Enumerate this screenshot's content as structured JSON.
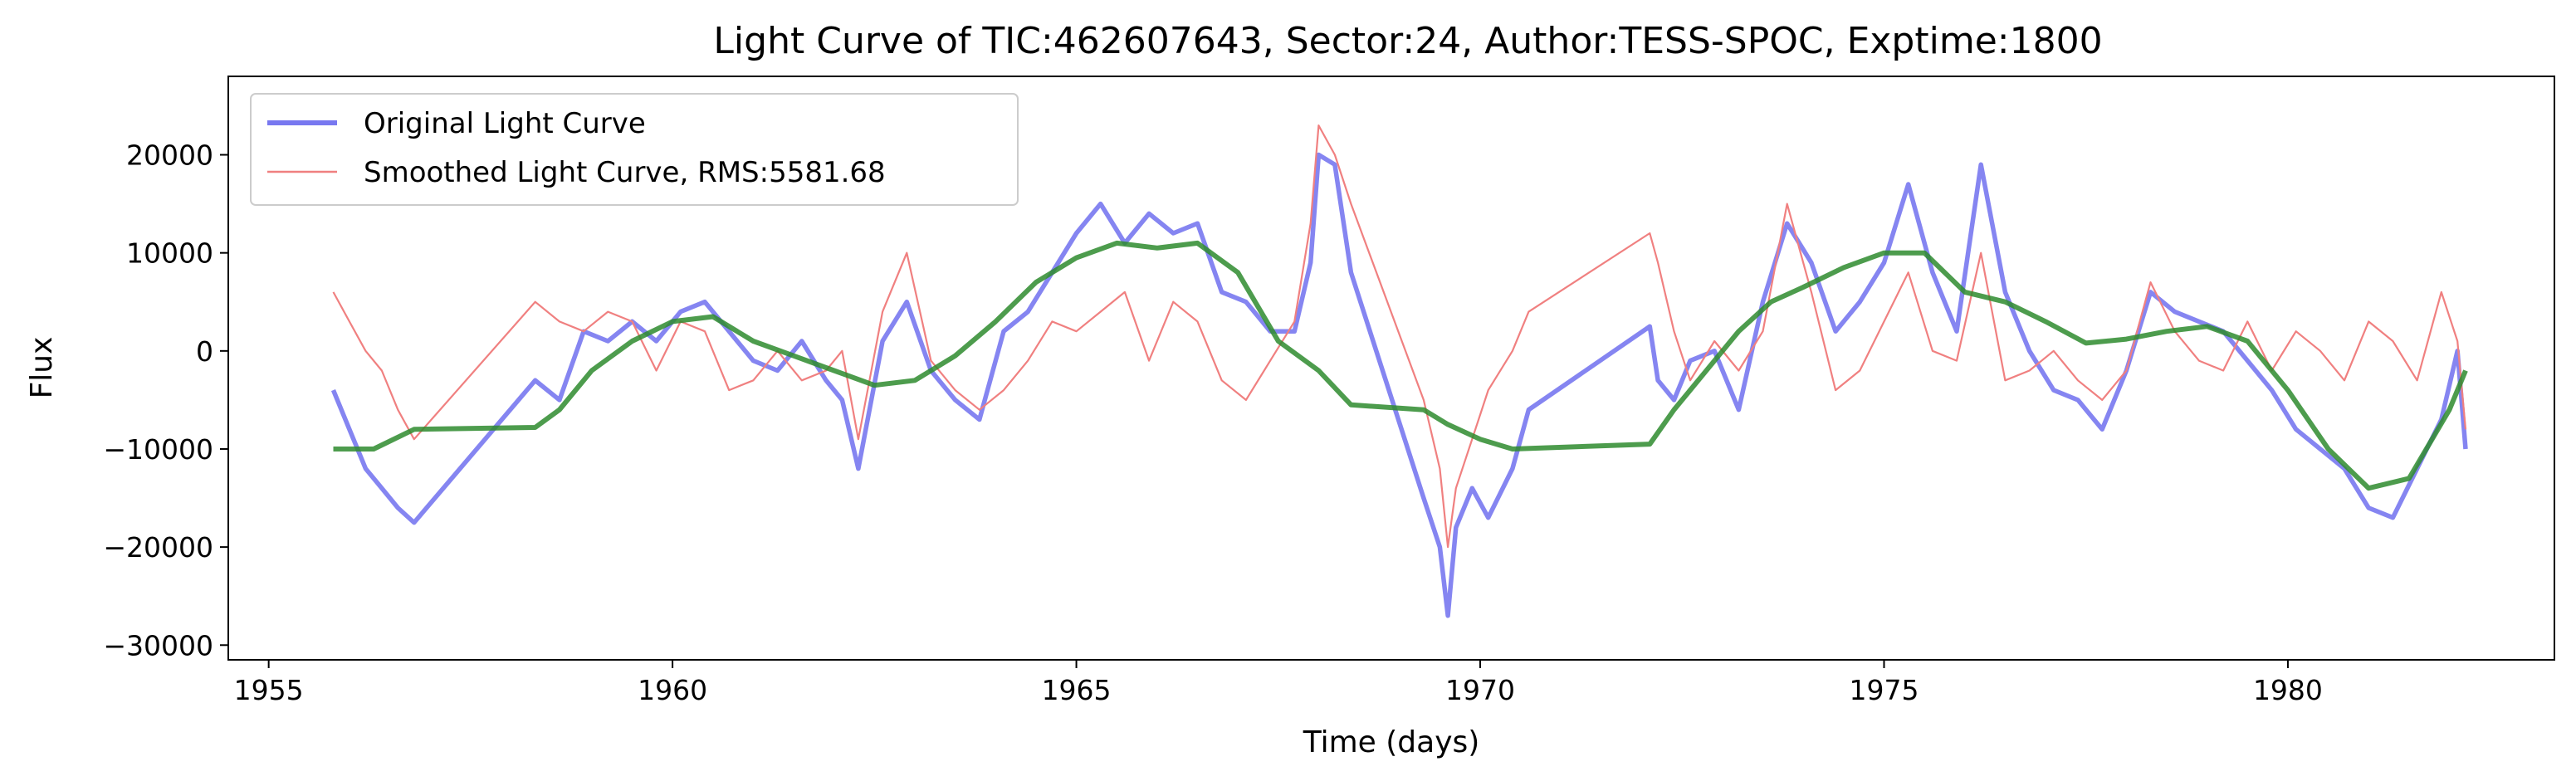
{
  "chart_data": {
    "type": "line",
    "title": "Light Curve of TIC:462607643, Sector:24, Author:TESS-SPOC, Exptime:1800",
    "xlabel": "Time (days)",
    "ylabel": "Flux",
    "xlim": [
      1954.5,
      1983.3
    ],
    "ylim": [
      -31500,
      28000
    ],
    "xticks": [
      1955,
      1960,
      1965,
      1970,
      1975,
      1980
    ],
    "yticks": [
      -30000,
      -20000,
      -10000,
      0,
      10000,
      20000
    ],
    "xtick_labels": [
      "1955",
      "1960",
      "1965",
      "1970",
      "1975",
      "1980"
    ],
    "ytick_labels": [
      "−30000",
      "−20000",
      "−10000",
      "0",
      "10000",
      "20000"
    ],
    "grid": false,
    "legend_position": "top-left",
    "series": [
      {
        "name": "Original Light Curve",
        "color": "#7878f0",
        "x": [
          1955.8,
          1956.0,
          1956.2,
          1956.4,
          1956.6,
          1956.8,
          1958.3,
          1958.6,
          1958.9,
          1959.2,
          1959.5,
          1959.8,
          1960.1,
          1960.4,
          1960.7,
          1961.0,
          1961.3,
          1961.6,
          1961.9,
          1962.1,
          1962.3,
          1962.6,
          1962.9,
          1963.2,
          1963.5,
          1963.8,
          1964.1,
          1964.4,
          1964.7,
          1965.0,
          1965.3,
          1965.6,
          1965.9,
          1966.2,
          1966.5,
          1966.8,
          1967.1,
          1967.4,
          1967.7,
          1967.9,
          1968.0,
          1968.2,
          1968.4,
          1969.3,
          1969.5,
          1969.6,
          1969.7,
          1969.9,
          1970.1,
          1970.4,
          1970.6,
          1972.1,
          1972.2,
          1972.4,
          1972.6,
          1972.9,
          1973.2,
          1973.5,
          1973.8,
          1974.1,
          1974.4,
          1974.7,
          1975.0,
          1975.3,
          1975.6,
          1975.9,
          1976.2,
          1976.5,
          1976.8,
          1977.1,
          1977.4,
          1977.7,
          1978.0,
          1978.3,
          1978.6,
          1978.9,
          1979.2,
          1979.5,
          1979.8,
          1980.1,
          1980.4,
          1980.7,
          1981.0,
          1981.3,
          1981.6,
          1981.9,
          1982.1,
          1982.2
        ],
        "y": [
          -4000,
          -8000,
          -12000,
          -14000,
          -16000,
          -17500,
          -3000,
          -5000,
          2000,
          1000,
          3000,
          1000,
          4000,
          5000,
          2000,
          -1000,
          -2000,
          1000,
          -3000,
          -5000,
          -12000,
          1000,
          5000,
          -2000,
          -5000,
          -7000,
          2000,
          4000,
          8000,
          12000,
          15000,
          11000,
          14000,
          12000,
          13000,
          6000,
          5000,
          2000,
          2000,
          9000,
          20000,
          19000,
          8000,
          -15000,
          -20000,
          -27000,
          -18000,
          -14000,
          -17000,
          -12000,
          -6000,
          2500,
          -3000,
          -5000,
          -1000,
          0,
          -6000,
          5000,
          13000,
          9000,
          2000,
          5000,
          9000,
          17000,
          8000,
          2000,
          19000,
          6000,
          0,
          -4000,
          -5000,
          -8000,
          -2000,
          6000,
          4000,
          3000,
          2000,
          -1000,
          -4000,
          -8000,
          -10000,
          -12000,
          -16000,
          -17000,
          -12000,
          -7000,
          0,
          -10000
        ]
      },
      {
        "name": "Smoothed Light Curve, RMS:5581.68",
        "color": "#f08080",
        "x": [
          1955.8,
          1956.0,
          1956.2,
          1956.4,
          1956.6,
          1956.8,
          1958.3,
          1958.6,
          1958.9,
          1959.2,
          1959.5,
          1959.8,
          1960.1,
          1960.4,
          1960.7,
          1961.0,
          1961.3,
          1961.6,
          1961.9,
          1962.1,
          1962.3,
          1962.6,
          1962.9,
          1963.2,
          1963.5,
          1963.8,
          1964.1,
          1964.4,
          1964.7,
          1965.0,
          1965.3,
          1965.6,
          1965.9,
          1966.2,
          1966.5,
          1966.8,
          1967.1,
          1967.4,
          1967.7,
          1967.9,
          1968.0,
          1968.2,
          1968.4,
          1969.3,
          1969.5,
          1969.6,
          1969.7,
          1969.9,
          1970.1,
          1970.4,
          1970.6,
          1972.1,
          1972.2,
          1972.4,
          1972.6,
          1972.9,
          1973.2,
          1973.5,
          1973.8,
          1974.1,
          1974.4,
          1974.7,
          1975.0,
          1975.3,
          1975.6,
          1975.9,
          1976.2,
          1976.5,
          1976.8,
          1977.1,
          1977.4,
          1977.7,
          1978.0,
          1978.3,
          1978.6,
          1978.9,
          1979.2,
          1979.5,
          1979.8,
          1980.1,
          1980.4,
          1980.7,
          1981.0,
          1981.3,
          1981.6,
          1981.9,
          1982.1,
          1982.2
        ],
        "y": [
          6000,
          3000,
          0,
          -2000,
          -6000,
          -9000,
          5000,
          3000,
          2000,
          4000,
          3000,
          -2000,
          3000,
          2000,
          -4000,
          -3000,
          0,
          -3000,
          -2000,
          0,
          -9000,
          4000,
          10000,
          -1000,
          -4000,
          -6000,
          -4000,
          -1000,
          3000,
          2000,
          4000,
          6000,
          -1000,
          5000,
          3000,
          -3000,
          -5000,
          -1000,
          3000,
          13000,
          23000,
          20000,
          15000,
          -5000,
          -12000,
          -20000,
          -14000,
          -9000,
          -4000,
          0,
          4000,
          12000,
          9000,
          2000,
          -3000,
          1000,
          -2000,
          2000,
          15000,
          6000,
          -4000,
          -2000,
          3000,
          8000,
          0,
          -1000,
          10000,
          -3000,
          -2000,
          0,
          -3000,
          -5000,
          -2000,
          7000,
          2000,
          -1000,
          -2000,
          3000,
          -2000,
          2000,
          0,
          -3000,
          3000,
          1000,
          -3000,
          6000,
          1000,
          -8000
        ]
      },
      {
        "name": "",
        "color": "#2e8b2e",
        "x": [
          1955.8,
          1956.3,
          1956.8,
          1958.3,
          1958.6,
          1959.0,
          1959.5,
          1960.0,
          1960.5,
          1961.0,
          1961.5,
          1962.0,
          1962.5,
          1963.0,
          1963.5,
          1964.0,
          1964.5,
          1965.0,
          1965.5,
          1966.0,
          1966.5,
          1967.0,
          1967.5,
          1968.0,
          1968.4,
          1969.3,
          1969.6,
          1970.0,
          1970.4,
          1972.1,
          1972.4,
          1972.8,
          1973.2,
          1973.6,
          1974.0,
          1974.5,
          1975.0,
          1975.5,
          1976.0,
          1976.5,
          1977.0,
          1977.5,
          1978.0,
          1978.5,
          1979.0,
          1979.5,
          1980.0,
          1980.5,
          1981.0,
          1981.5,
          1982.0,
          1982.2
        ],
        "y": [
          -10000,
          -10000,
          -8000,
          -7800,
          -6000,
          -2000,
          1000,
          3000,
          3500,
          1000,
          -500,
          -2000,
          -3500,
          -3000,
          -500,
          3000,
          7000,
          9500,
          11000,
          10500,
          11000,
          8000,
          1000,
          -2000,
          -5500,
          -6000,
          -7500,
          -9000,
          -10000,
          -9500,
          -6000,
          -2000,
          2000,
          5000,
          6500,
          8500,
          10000,
          10000,
          6000,
          5000,
          3000,
          800,
          1200,
          2000,
          2500,
          1000,
          -4000,
          -10000,
          -14000,
          -13000,
          -6000,
          -2000
        ]
      }
    ]
  }
}
